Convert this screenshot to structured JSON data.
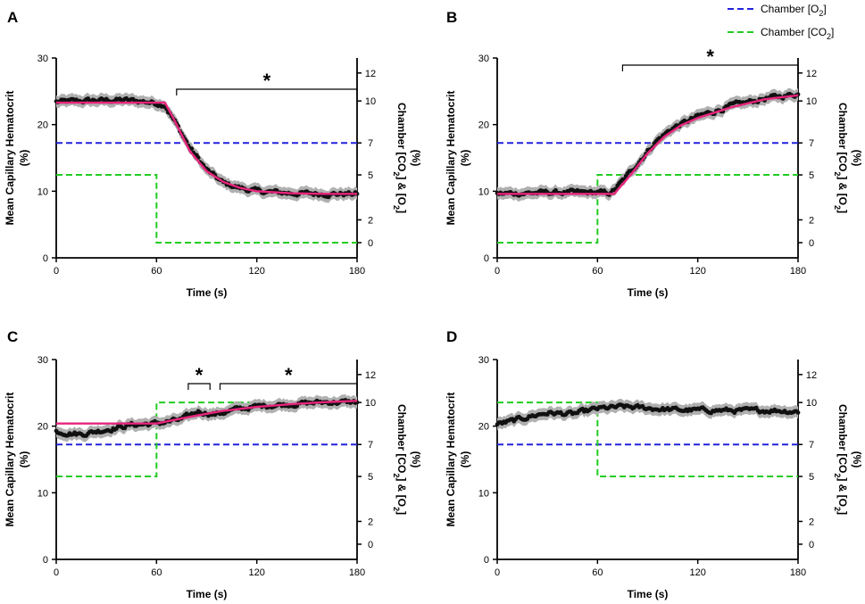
{
  "legend": {
    "o2": {
      "label_pre": "Chamber [O",
      "label_sub": "2",
      "label_post": "]",
      "color": "#2222dd"
    },
    "co2": {
      "label_pre": "Chamber [CO",
      "label_sub": "2",
      "label_post": "]",
      "color": "#22cc22"
    }
  },
  "colors": {
    "fit": "#e8247c",
    "data": "#111111",
    "band": "#b0b0b0"
  },
  "chart_data": [
    {
      "panel": "A",
      "type": "line",
      "xlabel": "Time (s)",
      "ylabel": "Mean Capillary Hematocrit (%)",
      "y2label": "Chamber [CO2] & [O2] (%)",
      "xlim": [
        0,
        180
      ],
      "xticks": [
        0,
        60,
        120,
        180
      ],
      "ylim": [
        0,
        30
      ],
      "yticks": [
        0,
        10,
        20,
        30
      ],
      "y2ticks": [
        0,
        2,
        5,
        7,
        10,
        12
      ],
      "o2": [
        [
          0,
          7
        ],
        [
          180,
          7
        ]
      ],
      "co2": [
        [
          0,
          5
        ],
        [
          60,
          5
        ],
        [
          60,
          0
        ],
        [
          180,
          0
        ]
      ],
      "hematocrit_trend": [
        [
          0,
          23.4
        ],
        [
          20,
          23.6
        ],
        [
          40,
          23.7
        ],
        [
          55,
          23.4
        ],
        [
          65,
          23.0
        ],
        [
          72,
          20.0
        ],
        [
          80,
          16.5
        ],
        [
          90,
          13.2
        ],
        [
          100,
          11.2
        ],
        [
          110,
          10.5
        ],
        [
          120,
          10.0
        ],
        [
          140,
          9.7
        ],
        [
          160,
          9.6
        ],
        [
          180,
          9.6
        ]
      ],
      "fit": [
        [
          0,
          23.3
        ],
        [
          65,
          23.3
        ],
        [
          70,
          21.0
        ],
        [
          80,
          16.0
        ],
        [
          90,
          13.0
        ],
        [
          100,
          11.4
        ],
        [
          110,
          10.5
        ],
        [
          120,
          10.0
        ],
        [
          140,
          9.7
        ],
        [
          160,
          9.6
        ],
        [
          180,
          9.6
        ]
      ],
      "significance": [
        {
          "x1": 72,
          "x2": 180,
          "label": "*"
        }
      ]
    },
    {
      "panel": "B",
      "type": "line",
      "xlabel": "Time (s)",
      "ylabel": "Mean Capillary Hematocrit (%)",
      "y2label": "Chamber [CO2] & [O2] (%)",
      "xlim": [
        0,
        180
      ],
      "xticks": [
        0,
        60,
        120,
        180
      ],
      "ylim": [
        0,
        30
      ],
      "yticks": [
        0,
        10,
        20,
        30
      ],
      "y2ticks": [
        0,
        2,
        5,
        7,
        10,
        12
      ],
      "o2": [
        [
          0,
          7
        ],
        [
          180,
          7
        ]
      ],
      "co2": [
        [
          0,
          0
        ],
        [
          60,
          0
        ],
        [
          60,
          5
        ],
        [
          180,
          5
        ]
      ],
      "hematocrit_trend": [
        [
          0,
          9.6
        ],
        [
          30,
          9.8
        ],
        [
          60,
          9.8
        ],
        [
          68,
          9.7
        ],
        [
          75,
          11.5
        ],
        [
          85,
          14.5
        ],
        [
          95,
          17.5
        ],
        [
          105,
          19.5
        ],
        [
          120,
          21.2
        ],
        [
          140,
          22.8
        ],
        [
          160,
          23.9
        ],
        [
          180,
          24.6
        ]
      ],
      "fit": [
        [
          0,
          9.6
        ],
        [
          70,
          9.6
        ],
        [
          80,
          12.5
        ],
        [
          90,
          15.7
        ],
        [
          100,
          18.2
        ],
        [
          110,
          19.9
        ],
        [
          120,
          21.0
        ],
        [
          140,
          22.6
        ],
        [
          160,
          23.8
        ],
        [
          180,
          24.4
        ]
      ],
      "significance": [
        {
          "x1": 75,
          "x2": 180,
          "label": "*"
        }
      ]
    },
    {
      "panel": "C",
      "type": "line",
      "xlabel": "Time (s)",
      "ylabel": "Mean Capillary Hematocrit (%)",
      "y2label": "Chamber [CO2] & [O2] (%)",
      "xlim": [
        0,
        180
      ],
      "xticks": [
        0,
        60,
        120,
        180
      ],
      "ylim": [
        0,
        30
      ],
      "yticks": [
        0,
        10,
        20,
        30
      ],
      "y2ticks": [
        0,
        2,
        5,
        7,
        10,
        12
      ],
      "o2": [
        [
          0,
          7
        ],
        [
          180,
          7
        ]
      ],
      "co2": [
        [
          0,
          5
        ],
        [
          60,
          5
        ],
        [
          60,
          10
        ],
        [
          180,
          10
        ]
      ],
      "hematocrit_trend": [
        [
          0,
          19.2
        ],
        [
          15,
          18.8
        ],
        [
          30,
          19.5
        ],
        [
          45,
          20.2
        ],
        [
          60,
          20.4
        ],
        [
          75,
          21.0
        ],
        [
          85,
          22.2
        ],
        [
          95,
          21.8
        ],
        [
          110,
          22.6
        ],
        [
          125,
          23.1
        ],
        [
          140,
          23.3
        ],
        [
          160,
          23.6
        ],
        [
          180,
          23.6
        ]
      ],
      "fit": [
        [
          0,
          20.4
        ],
        [
          60,
          20.4
        ],
        [
          80,
          21.4
        ],
        [
          100,
          22.3
        ],
        [
          120,
          22.9
        ],
        [
          140,
          23.3
        ],
        [
          160,
          23.6
        ],
        [
          180,
          23.8
        ]
      ],
      "significance": [
        {
          "x1": 79,
          "x2": 92,
          "label": "*"
        },
        {
          "x1": 98,
          "x2": 180,
          "label": "*"
        }
      ]
    },
    {
      "panel": "D",
      "type": "line",
      "xlabel": "Time (s)",
      "ylabel": "Mean Capillary Hematocrit (%)",
      "y2label": "Chamber [CO2] & [O2] (%)",
      "xlim": [
        0,
        180
      ],
      "xticks": [
        0,
        60,
        120,
        180
      ],
      "ylim": [
        0,
        30
      ],
      "yticks": [
        0,
        10,
        20,
        30
      ],
      "y2ticks": [
        0,
        2,
        5,
        7,
        10,
        12
      ],
      "o2": [
        [
          0,
          7
        ],
        [
          180,
          7
        ]
      ],
      "co2": [
        [
          0,
          10
        ],
        [
          60,
          10
        ],
        [
          60,
          5
        ],
        [
          180,
          5
        ]
      ],
      "hematocrit_trend": [
        [
          0,
          20.3
        ],
        [
          10,
          20.8
        ],
        [
          20,
          21.5
        ],
        [
          30,
          22.0
        ],
        [
          45,
          21.8
        ],
        [
          60,
          22.6
        ],
        [
          75,
          22.9
        ],
        [
          90,
          22.7
        ],
        [
          110,
          22.4
        ],
        [
          130,
          22.4
        ],
        [
          150,
          22.3
        ],
        [
          165,
          22.4
        ],
        [
          180,
          22.2
        ]
      ],
      "fit": [],
      "significance": []
    }
  ]
}
